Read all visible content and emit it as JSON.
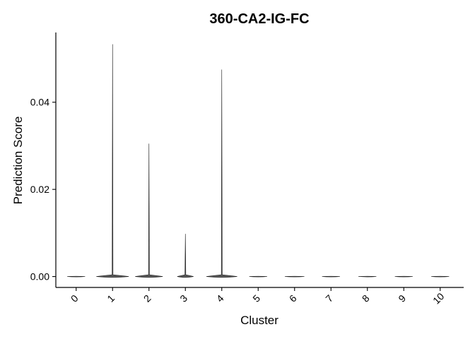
{
  "chart_data": {
    "type": "violin",
    "title": "360-CA2-IG-FC",
    "xlabel": "Cluster",
    "ylabel": "Prediction Score",
    "categories": [
      "0",
      "1",
      "2",
      "3",
      "4",
      "5",
      "6",
      "7",
      "8",
      "9",
      "10"
    ],
    "y_ticks": [
      "0.00",
      "0.02",
      "0.04"
    ],
    "ylim": [
      -0.0025,
      0.056
    ],
    "series": [
      {
        "max": [
          0.0,
          0.0533,
          0.0305,
          0.0098,
          0.0475,
          0.0,
          0.0,
          0.0,
          0.0,
          0.0,
          0.0
        ],
        "peak_density": [
          0.55,
          1.0,
          0.85,
          0.5,
          0.95,
          0.55,
          0.6,
          0.55,
          0.55,
          0.55,
          0.55
        ]
      }
    ],
    "grid": false,
    "legend": "none"
  }
}
